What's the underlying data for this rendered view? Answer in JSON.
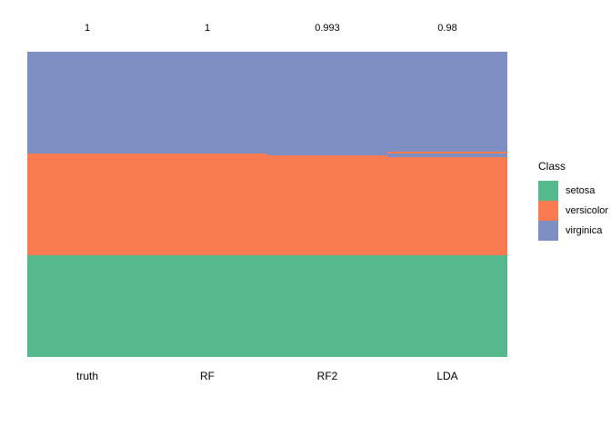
{
  "chart_data": {
    "type": "bar",
    "variant": "stacked-class-prediction-columns",
    "title": "",
    "xlabel": "",
    "ylabel": "",
    "grid": false,
    "categories": [
      "truth",
      "RF",
      "RF2",
      "LDA"
    ],
    "accuracy_labels": [
      "1",
      "1",
      "0.993",
      "0.98"
    ],
    "n_samples_per_column": 150,
    "classes": [
      "setosa",
      "versicolor",
      "virginica"
    ],
    "colors": {
      "setosa": "#56B98D",
      "versicolor": "#F97B51",
      "virginica": "#7D8FC3"
    },
    "legend": {
      "title": "Class",
      "position": "right",
      "items": [
        {
          "label": "setosa",
          "color": "#56B98D"
        },
        {
          "label": "versicolor",
          "color": "#F97B51"
        },
        {
          "label": "virginica",
          "color": "#7D8FC3"
        }
      ]
    },
    "columns": [
      {
        "category": "truth",
        "accuracy_label": "1",
        "segments": [
          {
            "class": "virginica",
            "count": 50
          },
          {
            "class": "versicolor",
            "count": 50
          },
          {
            "class": "setosa",
            "count": 50
          }
        ]
      },
      {
        "category": "RF",
        "accuracy_label": "1",
        "segments": [
          {
            "class": "virginica",
            "count": 50
          },
          {
            "class": "versicolor",
            "count": 50
          },
          {
            "class": "setosa",
            "count": 50
          }
        ]
      },
      {
        "category": "RF2",
        "accuracy_label": "0.993",
        "segments": [
          {
            "class": "virginica",
            "count": 51
          },
          {
            "class": "versicolor",
            "count": 49
          },
          {
            "class": "setosa",
            "count": 50
          }
        ]
      },
      {
        "category": "LDA",
        "accuracy_label": "0.98",
        "segments": [
          {
            "class": "virginica",
            "count": 49
          },
          {
            "class": "versicolor",
            "count": 1
          },
          {
            "class": "virginica",
            "count": 2
          },
          {
            "class": "versicolor",
            "count": 48
          },
          {
            "class": "setosa",
            "count": 50
          }
        ]
      }
    ]
  }
}
